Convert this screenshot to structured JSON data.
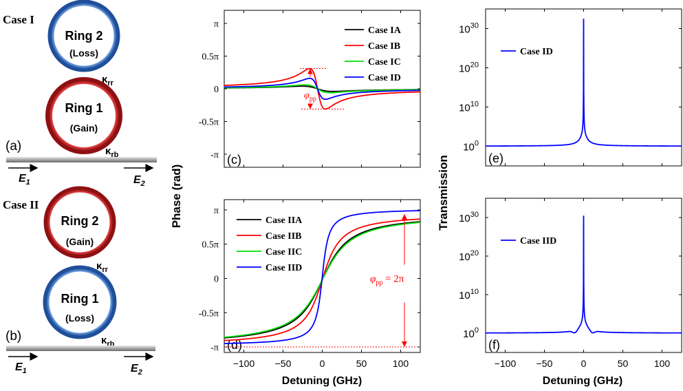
{
  "diagrams": {
    "case1": {
      "title": "Case I",
      "top_ring": {
        "name": "Ring 2",
        "type": "(Loss)",
        "color": "#3a78c8"
      },
      "bottom_ring": {
        "name": "Ring 1",
        "type": "(Gain)",
        "color": "#c8262a"
      },
      "coupling_rr": "κrr",
      "coupling_rb": "κrb",
      "panel": "(a)",
      "e_in": "E1",
      "e_out": "E2"
    },
    "case2": {
      "title": "Case II",
      "top_ring": {
        "name": "Ring 2",
        "type": "(Gain)",
        "color": "#c8262a"
      },
      "bottom_ring": {
        "name": "Ring 1",
        "type": "(Loss)",
        "color": "#3a78c8"
      },
      "coupling_rr": "κrr",
      "coupling_rb": "κrb",
      "panel": "(b)",
      "e_in": "E1",
      "e_out": "E2"
    }
  },
  "shared_labels": {
    "phase_ylabel": "Phase (rad)",
    "transmission_ylabel": "Transmission",
    "xlabel": "Detuning (GHz)"
  },
  "chart_data": [
    {
      "id": "c",
      "type": "line",
      "panel": "(c)",
      "xlim": [
        -125,
        125
      ],
      "ylim_pi": [
        -1.2,
        1.2
      ],
      "xticks": [
        -100,
        -50,
        0,
        50,
        100
      ],
      "xticks_shown": false,
      "yticks": [
        "-π",
        "-0.5π",
        "0",
        "0.5π",
        "π"
      ],
      "ytick_values_pi": [
        -1,
        -0.5,
        0,
        0.5,
        1
      ],
      "legend": "top-right",
      "annotation": {
        "text": "φpp",
        "color": "#ff0000"
      },
      "series": [
        {
          "name": "Case IA",
          "color": "#000000",
          "peak_pi": 0.04,
          "width_ghz": 20
        },
        {
          "name": "Case IB",
          "color": "#ff0000",
          "peak_pi": 0.31,
          "width_ghz": 10
        },
        {
          "name": "Case IC",
          "color": "#00dd00",
          "peak_pi": 0.06,
          "width_ghz": 16
        },
        {
          "name": "Case ID",
          "color": "#0000ff",
          "peak_pi": 0.16,
          "width_ghz": 10
        }
      ]
    },
    {
      "id": "d",
      "type": "line",
      "panel": "(d)",
      "xlim": [
        -125,
        125
      ],
      "ylim_pi": [
        -1.08,
        1.15
      ],
      "xticks": [
        -100,
        -50,
        0,
        50,
        100
      ],
      "yticks": [
        "-π",
        "-0.5π",
        "0",
        "0.5π",
        "π"
      ],
      "ytick_values_pi": [
        -1,
        -0.5,
        0,
        0.5,
        1
      ],
      "legend": "top-left",
      "annotation": {
        "text": "φpp = 2π",
        "color": "#ff0000"
      },
      "series": [
        {
          "name": "Case IIA",
          "color": "#000000",
          "width_ghz": 25
        },
        {
          "name": "Case IIB",
          "color": "#ff0000",
          "width_ghz": 17
        },
        {
          "name": "Case IIC",
          "color": "#00dd00",
          "width_ghz": 27
        },
        {
          "name": "Case IID",
          "color": "#0000ff",
          "width_ghz": 6
        }
      ]
    },
    {
      "id": "e",
      "type": "line",
      "panel": "(e)",
      "yscale": "log",
      "xlim": [
        -125,
        125
      ],
      "ylim_log10": [
        -5,
        35
      ],
      "xticks": [
        -100,
        -50,
        0,
        50,
        100
      ],
      "xticks_shown": false,
      "yticks": [
        "10^0",
        "10^10",
        "10^20",
        "10^30"
      ],
      "ytick_values_log10": [
        0,
        10,
        20,
        30
      ],
      "legend": "top-left",
      "series": [
        {
          "name": "Case ID",
          "color": "#0000ff",
          "peak_log10": 31
        }
      ]
    },
    {
      "id": "f",
      "type": "line",
      "panel": "(f)",
      "yscale": "log",
      "xlim": [
        -125,
        125
      ],
      "ylim_log10": [
        -5,
        35
      ],
      "xticks": [
        -100,
        -50,
        0,
        50,
        100
      ],
      "yticks": [
        "10^0",
        "10^10",
        "10^20",
        "10^30"
      ],
      "ytick_values_log10": [
        0,
        10,
        20,
        30
      ],
      "legend": "top-left",
      "series": [
        {
          "name": "Case IID",
          "color": "#0000ff",
          "peak_log10": 29
        }
      ]
    }
  ]
}
